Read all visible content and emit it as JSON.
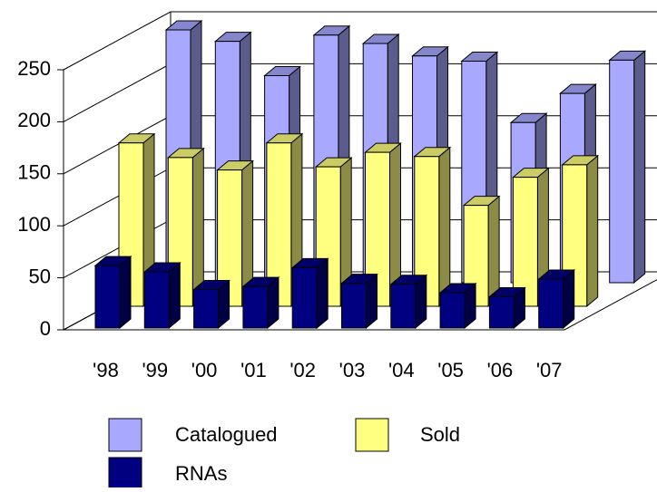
{
  "chart_data": {
    "type": "bar3d",
    "categories": [
      "'98",
      "'99",
      "'00",
      "'01",
      "'02",
      "'03",
      "'04",
      "'05",
      "'06",
      "'07"
    ],
    "series": [
      {
        "name": "Catalogued",
        "color": "#a8a8ff",
        "values": [
          243,
          232,
          199,
          238,
          230,
          218,
          213,
          154,
          182,
          214
        ]
      },
      {
        "name": "Sold",
        "color": "#ffff80",
        "values": [
          157,
          143,
          131,
          157,
          134,
          148,
          144,
          97,
          124,
          136
        ]
      },
      {
        "name": "RNAs",
        "color": "#000080",
        "values": [
          60,
          54,
          37,
          40,
          58,
          43,
          42,
          34,
          30,
          47
        ]
      }
    ],
    "ylim": [
      0,
      250
    ],
    "yticks": [
      0,
      50,
      100,
      150,
      200,
      250
    ],
    "grid": true
  }
}
